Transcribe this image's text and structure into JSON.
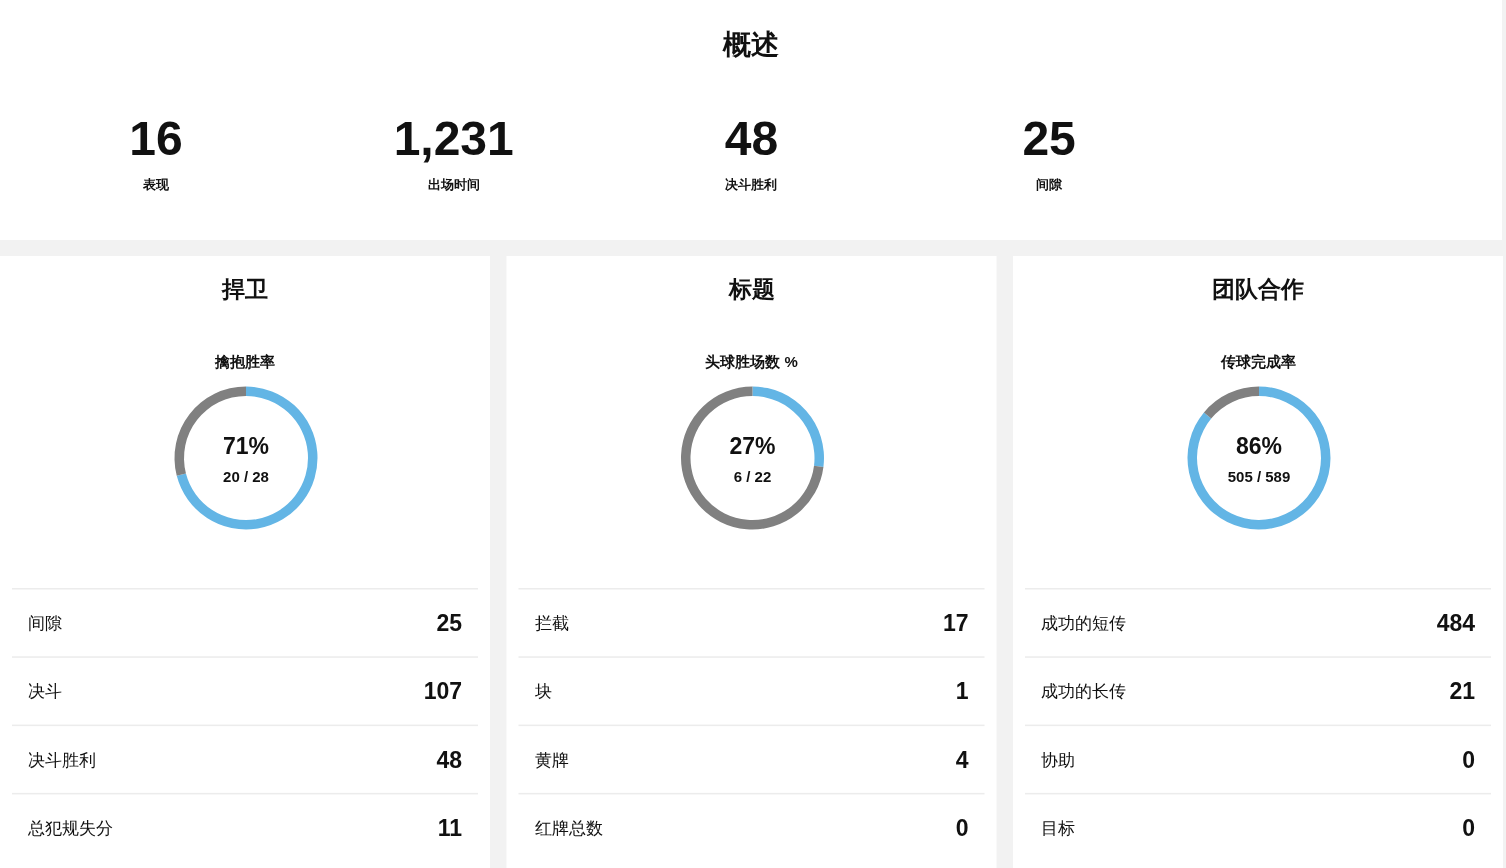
{
  "chart_data": [
    {
      "type": "other",
      "title": "概述",
      "annotations": [
        "16",
        "表现",
        "1,231",
        "出场时间",
        "48",
        "决斗胜利",
        "25",
        "间隙"
      ]
    },
    {
      "type": "donut",
      "title": "捍卫",
      "subtitle": "擒抱胜率",
      "categories": [
        null,
        null
      ],
      "values": [
        71,
        29
      ],
      "colors": [
        "#63b5e5",
        "#808080"
      ],
      "value_labels": [
        "71%",
        null
      ],
      "annotations": [
        "20 / 28"
      ]
    },
    {
      "type": "other",
      "annotations": [
        "间隙",
        "25",
        "决斗",
        "107",
        "决斗胜利",
        "48",
        "总犯规失分",
        "11"
      ]
    },
    {
      "type": "donut",
      "title": "标题",
      "subtitle": "头球胜场数 %",
      "categories": [
        null,
        null
      ],
      "values": [
        27,
        73
      ],
      "colors": [
        "#63b5e5",
        "#808080"
      ],
      "value_labels": [
        "27%",
        null
      ],
      "annotations": [
        "6 / 22"
      ]
    },
    {
      "type": "other",
      "annotations": [
        "拦截",
        "17",
        "块",
        "1",
        "黄牌",
        "4",
        "红牌总数",
        "0"
      ]
    },
    {
      "type": "donut",
      "title": "团队合作",
      "subtitle": "传球完成率",
      "categories": [
        null,
        null
      ],
      "values": [
        86,
        14
      ],
      "colors": [
        "#63b5e5",
        "#808080"
      ],
      "value_labels": [
        "86%",
        null
      ],
      "annotations": [
        "505 / 589"
      ]
    },
    {
      "type": "other",
      "annotations": [
        "成功的短传",
        "484",
        "成功的长传",
        "21",
        "协助",
        "0",
        "目标",
        "0"
      ]
    }
  ]
}
